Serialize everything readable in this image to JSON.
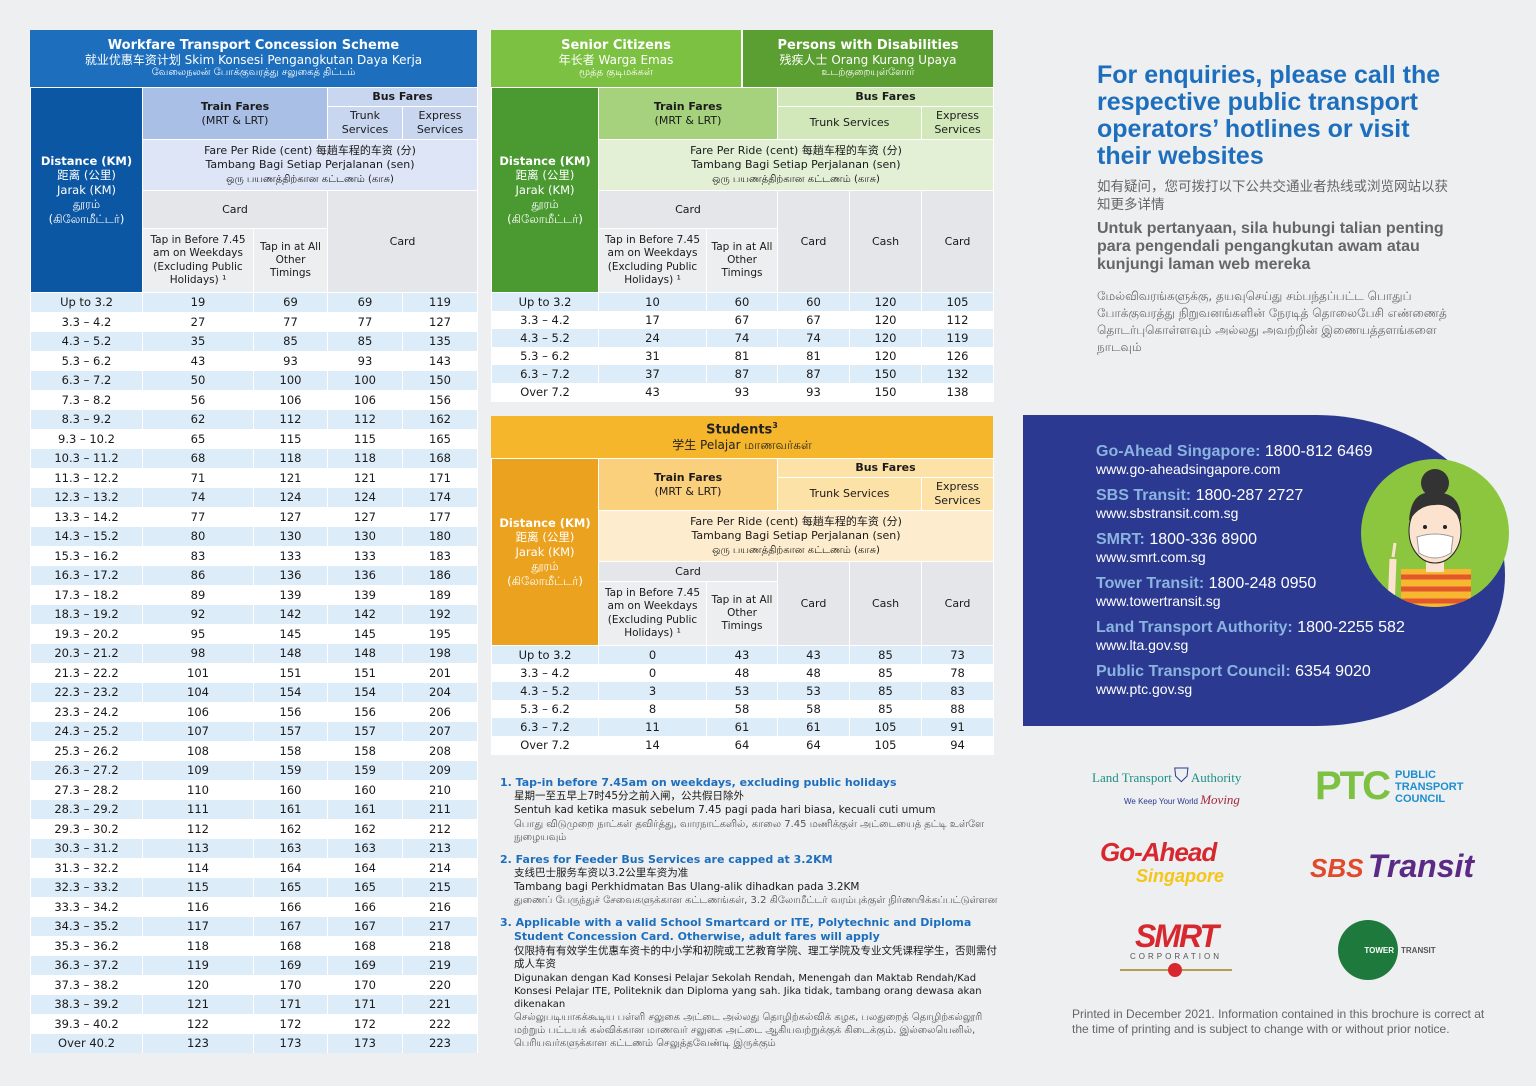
{
  "common": {
    "distance": [
      "Distance (KM)",
      "距离 (公里)",
      "Jarak (KM)",
      "தூரம்",
      "(கிலோமீட்டர்)"
    ],
    "train_fares": "Train Fares",
    "train_sub": "(MRT & LRT)",
    "bus_fares": "Bus Fares",
    "trunk_services": "Trunk Services",
    "express_services": "Express Services",
    "fare_per_ride": [
      "Fare Per Ride (cent)  每趟车程的车资 (分)",
      "Tambang Bagi Setiap Perjalanan (sen)",
      "ஒரு பயணத்திற்கான கட்டணம் (காசு)"
    ],
    "card": "Card",
    "cash": "Cash",
    "tap_before": "Tap in Before 7.45 am on Weekdays (Excluding Public Holidays) ¹",
    "tap_other": "Tap in at All Other Timings"
  },
  "workfare": {
    "title": "Workfare Transport Concession Scheme",
    "subtitle_zh_ms": "就业优惠车资计划  Skim Konsesi Pengangkutan Daya Kerja",
    "subtitle_ta": "வேலைநலன் போக்குவரத்து சலுகைத் திட்டம்",
    "columns": [
      "Distance (KM)",
      "Train Card Tap in Before 7.45",
      "Train Card Tap in at All Other Timings",
      "Trunk Services Card",
      "Express Services Card"
    ],
    "rows": [
      [
        "Up to 3.2",
        19,
        69,
        69,
        119
      ],
      [
        "3.3 – 4.2",
        27,
        77,
        77,
        127
      ],
      [
        "4.3 – 5.2",
        35,
        85,
        85,
        135
      ],
      [
        "5.3 – 6.2",
        43,
        93,
        93,
        143
      ],
      [
        "6.3 – 7.2",
        50,
        100,
        100,
        150
      ],
      [
        "7.3 – 8.2",
        56,
        106,
        106,
        156
      ],
      [
        "8.3 – 9.2",
        62,
        112,
        112,
        162
      ],
      [
        "9.3 – 10.2",
        65,
        115,
        115,
        165
      ],
      [
        "10.3 – 11.2",
        68,
        118,
        118,
        168
      ],
      [
        "11.3 – 12.2",
        71,
        121,
        121,
        171
      ],
      [
        "12.3 – 13.2",
        74,
        124,
        124,
        174
      ],
      [
        "13.3 – 14.2",
        77,
        127,
        127,
        177
      ],
      [
        "14.3 – 15.2",
        80,
        130,
        130,
        180
      ],
      [
        "15.3 – 16.2",
        83,
        133,
        133,
        183
      ],
      [
        "16.3 – 17.2",
        86,
        136,
        136,
        186
      ],
      [
        "17.3 – 18.2",
        89,
        139,
        139,
        189
      ],
      [
        "18.3 – 19.2",
        92,
        142,
        142,
        192
      ],
      [
        "19.3 – 20.2",
        95,
        145,
        145,
        195
      ],
      [
        "20.3 – 21.2",
        98,
        148,
        148,
        198
      ],
      [
        "21.3 – 22.2",
        101,
        151,
        151,
        201
      ],
      [
        "22.3 – 23.2",
        104,
        154,
        154,
        204
      ],
      [
        "23.3 – 24.2",
        106,
        156,
        156,
        206
      ],
      [
        "24.3 – 25.2",
        107,
        157,
        157,
        207
      ],
      [
        "25.3 – 26.2",
        108,
        158,
        158,
        208
      ],
      [
        "26.3 – 27.2",
        109,
        159,
        159,
        209
      ],
      [
        "27.3 – 28.2",
        110,
        160,
        160,
        210
      ],
      [
        "28.3 – 29.2",
        111,
        161,
        161,
        211
      ],
      [
        "29.3 – 30.2",
        112,
        162,
        162,
        212
      ],
      [
        "30.3 – 31.2",
        113,
        163,
        163,
        213
      ],
      [
        "31.3 – 32.2",
        114,
        164,
        164,
        214
      ],
      [
        "32.3 – 33.2",
        115,
        165,
        165,
        215
      ],
      [
        "33.3 – 34.2",
        116,
        166,
        166,
        216
      ],
      [
        "34.3 – 35.2",
        117,
        167,
        167,
        217
      ],
      [
        "35.3 – 36.2",
        118,
        168,
        168,
        218
      ],
      [
        "36.3 – 37.2",
        119,
        169,
        169,
        219
      ],
      [
        "37.3 – 38.2",
        120,
        170,
        170,
        220
      ],
      [
        "38.3 – 39.2",
        121,
        171,
        171,
        221
      ],
      [
        "39.3 – 40.2",
        122,
        172,
        172,
        222
      ],
      [
        "Over 40.2",
        123,
        173,
        173,
        223
      ]
    ]
  },
  "senior": {
    "title_sc": "Senior Citizens",
    "sub_sc": "年长者  Warga Emas",
    "ta_sc": "மூத்த குடிமக்கள்",
    "title_pwd": "Persons with Disabilities",
    "sub_pwd": "残疾人士  Orang Kurang Upaya",
    "ta_pwd": "உடற்குறையுள்ளோர்",
    "rows": [
      [
        "Up to 3.2",
        10,
        60,
        60,
        120,
        105
      ],
      [
        "3.3 – 4.2",
        17,
        67,
        67,
        120,
        112
      ],
      [
        "4.3 – 5.2",
        24,
        74,
        74,
        120,
        119
      ],
      [
        "5.3 – 6.2",
        31,
        81,
        81,
        120,
        126
      ],
      [
        "6.3 – 7.2",
        37,
        87,
        87,
        150,
        132
      ],
      [
        "Over 7.2",
        43,
        93,
        93,
        150,
        138
      ]
    ]
  },
  "students": {
    "title": "Students",
    "title_sup": "3",
    "subtitle": "学生  Pelajar  மாணவர்கள்",
    "rows": [
      [
        "Up to 3.2",
        0,
        43,
        43,
        85,
        73
      ],
      [
        "3.3 – 4.2",
        0,
        48,
        48,
        85,
        78
      ],
      [
        "4.3 – 5.2",
        3,
        53,
        53,
        85,
        83
      ],
      [
        "5.3 – 6.2",
        8,
        58,
        58,
        85,
        88
      ],
      [
        "6.3 – 7.2",
        11,
        61,
        61,
        105,
        91
      ],
      [
        "Over 7.2",
        14,
        64,
        64,
        105,
        94
      ]
    ]
  },
  "notes": [
    {
      "head": "1. Tap-in before 7.45am on weekdays, excluding public holidays",
      "lines": [
        "星期一至五早上7时45分之前入闸，公共假日除外",
        "Sentuh kad ketika masuk sebelum 7.45 pagi pada hari biasa, kecuali cuti umum"
      ],
      "ta": "பொது விடுமுறை நாட்கள் தவிர்த்து, வாரநாட்களில், காலை 7.45 மணிக்குள் அட்டையைத் தட்டி உள்ளே நுழையவும்"
    },
    {
      "head": "2. Fares for Feeder Bus Services are capped at 3.2KM",
      "lines": [
        "支线巴士服务车资以3.2公里车资为准",
        "Tambang bagi Perkhidmatan Bas Ulang-alik dihadkan pada 3.2KM"
      ],
      "ta": "துணைப் பேருந்துச் சேவைகளுக்கான கட்டணங்கள், 3.2 கிலோமீட்டர் வரம்புக்குள் நிர்ணயிக்கப்பட்டுள்ளன"
    },
    {
      "head": "3. Applicable with a valid School Smartcard or ITE, Polytechnic and Diploma Student Concession Card. Otherwise, adult fares will apply",
      "lines": [
        "仅限持有有效学生优惠车资卡的中小学和初院或工艺教育学院、理工学院及专业文凭课程学生，否则需付成人车资",
        "Digunakan dengan Kad Konsesi Pelajar Sekolah Rendah, Menengah dan Maktab Rendah/Kad Konsesi Pelajar ITE, Politeknik dan Diploma yang sah. Jika tidak, tambang orang dewasa akan dikenakan"
      ],
      "ta": "செல்லுபடியாகக்கூடிய பள்ளி சலுகை அட்டை அல்லது தொழிற்கல்விக் கழக, பலதுறைத் தொழிற்கல்லூரி மற்றும் பட்டயக் கல்விக்கான மாணவர் சலுகை அட்டை ஆகியவற்றுக்குக் கிடைக்கும். இல்லையெனில், பெரியவர்களுக்கான கட்டணம் செலுத்தவேண்டி இருக்கும்"
    }
  ],
  "enquiries": {
    "heading": "For enquiries, please call the respective public transport operators’ hotlines or visit their websites",
    "zh": "如有疑问，您可拨打以下公共交通业者热线或浏览网站以获知更多详情",
    "ms": "Untuk pertanyaan, sila hubungi talian penting para pengendali pengangkutan awam atau kunjungi laman web mereka",
    "ta": "மேல்விவரங்களுக்கு, தயவுசெய்து சம்பந்தப்பட்ட பொதுப் போக்குவரத்து நிறுவனங்களின் நேரடித் தொலைபேசி எண்ணைத் தொடர்புகொள்ளவும் அல்லது அவற்றின் இணையத்தளங்களை நாடவும்"
  },
  "contacts": [
    {
      "name": "Go-Ahead Singapore:",
      "phone": "1800-812 6469",
      "web": "www.go-aheadsingapore.com"
    },
    {
      "name": "SBS Transit:",
      "phone": "1800-287 2727",
      "web": "www.sbstransit.com.sg"
    },
    {
      "name": "SMRT:",
      "phone": "1800-336 8900",
      "web": "www.smrt.com.sg"
    },
    {
      "name": "Tower Transit:",
      "phone": "1800-248 0950",
      "web": "www.towertransit.sg"
    },
    {
      "name": "Land Transport Authority:",
      "phone": "1800-2255 582",
      "web": "www.lta.gov.sg"
    },
    {
      "name": "Public Transport Council:",
      "phone": "6354 9020",
      "web": "www.ptc.gov.sg"
    }
  ],
  "logos": {
    "lta": [
      "Land Transport",
      "Authority",
      "We Keep Your World",
      "Moving"
    ],
    "ptc": [
      "PTC",
      "PUBLIC",
      "TRANSPORT",
      "COUNCIL"
    ],
    "goahead": [
      "Go-Ahead",
      "Singapore"
    ],
    "sbs": [
      "SBS",
      "Transit"
    ],
    "smrt": [
      "SMRT",
      "CORPORATION"
    ],
    "tower": [
      "TOWER",
      "TRANSIT"
    ]
  },
  "printed": "Printed in December 2021.  Information contained in this brochure is correct at the time of printing and is subject to change with or without prior notice.",
  "colors": {
    "workfare": "#1d6fbe",
    "senior": "#7cc142",
    "pwd": "#5b9e31",
    "students": "#f6b62b",
    "panel": "#2b3990"
  }
}
